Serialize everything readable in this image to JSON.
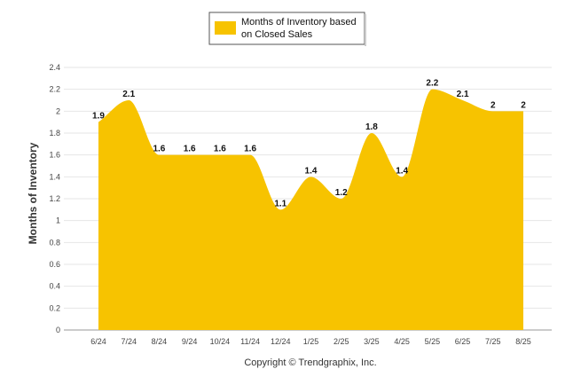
{
  "chart_data": {
    "type": "area",
    "categories": [
      "6/24",
      "7/24",
      "8/24",
      "9/24",
      "10/24",
      "11/24",
      "12/24",
      "1/25",
      "2/25",
      "3/25",
      "4/25",
      "5/25",
      "6/25",
      "7/25",
      "8/25"
    ],
    "series": [
      {
        "name": "Months of Inventory based on Closed Sales",
        "values": [
          1.9,
          2.1,
          1.6,
          1.6,
          1.6,
          1.6,
          1.1,
          1.4,
          1.2,
          1.8,
          1.4,
          2.2,
          2.1,
          2,
          2
        ],
        "color": "#F7C300"
      }
    ],
    "legend": {
      "line1": "Months of Inventory based",
      "line2": "on Closed Sales",
      "position": "top-center"
    },
    "xlabel": "",
    "ylabel": "Months of Inventory",
    "ylim": [
      0,
      2.4
    ],
    "yticks": [
      "0",
      "0.2",
      "0.4",
      "0.6",
      "0.8",
      "1",
      "1.2",
      "1.4",
      "1.6",
      "1.8",
      "2",
      "2.2",
      "2.4"
    ],
    "grid": true,
    "credit": "Copyright © Trendgraphix, Inc."
  }
}
